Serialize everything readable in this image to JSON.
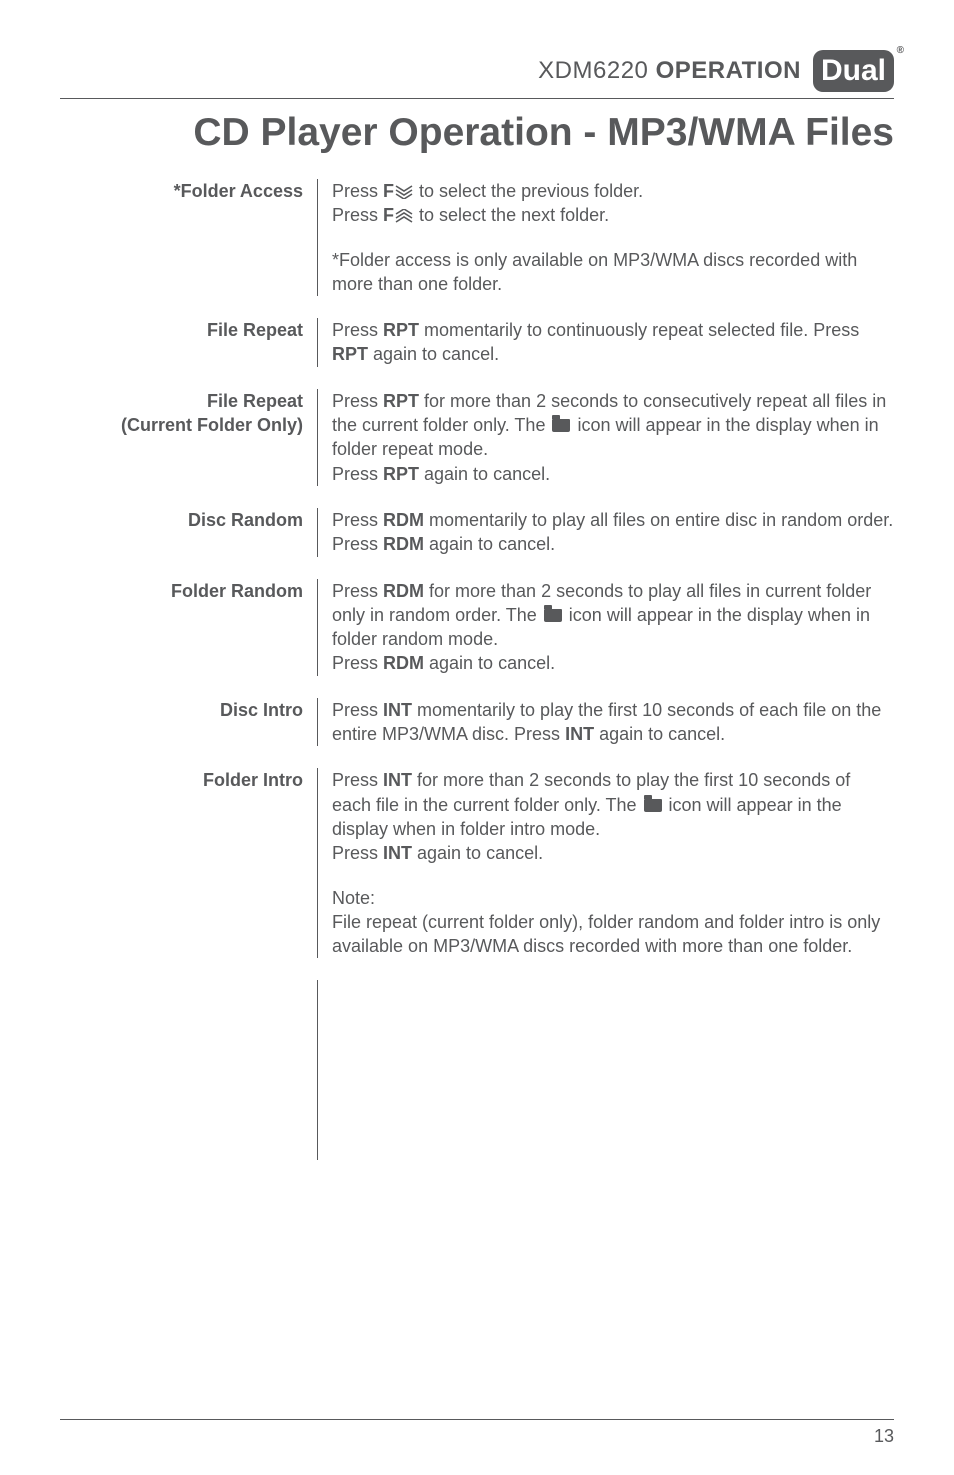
{
  "header": {
    "model": "XDM6220",
    "operation": "OPERATION",
    "logo": "Dual"
  },
  "title": "CD Player Operation - MP3/WMA Files",
  "sections": [
    {
      "label": "*Folder Access",
      "paras": [
        "Press <span class='b'>F</span><svg class='chev' width='20' height='14'><path d='M2 1 L10 6 L18 1 M2 5 L10 10 L18 5 M2 9 L10 14 L18 9' stroke='#58595b' stroke-width='1.6' fill='none'/></svg> to select the previous folder.<br>Press <span class='b'>F</span><svg class='chev' width='20' height='14'><path d='M2 13 L10 8 L18 13 M2 9 L10 4 L18 9 M2 5 L10 0 L18 5' stroke='#58595b' stroke-width='1.6' fill='none'/></svg> to select the next folder.",
        "*Folder access is only available on MP3/WMA discs recorded with more than one folder."
      ]
    },
    {
      "label": "File Repeat",
      "paras": [
        "Press <span class='b'>RPT</span> momentarily to continuously repeat selected file. Press <span class='b'>RPT</span> again to cancel."
      ]
    },
    {
      "label": "File Repeat<br>(Current Folder Only)",
      "paras": [
        "Press <span class='b'>RPT</span> for more than 2 seconds to consecutively repeat all files in the current folder only. The <span class='folder-icon'></span> icon will appear in the display when in folder repeat mode.<br>Press <span class='b'>RPT</span> again to cancel."
      ]
    },
    {
      "label": "Disc Random",
      "paras": [
        "Press <span class='b'>RDM</span> momentarily to play all files on entire disc in random order. Press <span class='b'>RDM</span> again to cancel."
      ]
    },
    {
      "label": "Folder Random",
      "paras": [
        "Press <span class='b'>RDM</span> for more than 2 seconds to play all files in current folder only in random order. The <span class='folder-icon'></span> icon will appear in the display when in folder random mode.<br>Press <span class='b'>RDM</span> again to cancel."
      ]
    },
    {
      "label": "Disc Intro",
      "paras": [
        "Press <span class='b'>INT</span> momentarily to play the first 10 seconds of each file on the entire MP3/WMA disc. Press <span class='b'>INT</span> again to cancel."
      ]
    },
    {
      "label": "Folder Intro",
      "paras": [
        "Press <span class='b'>INT</span> for more than 2 seconds to play the first 10 seconds of each file in the current folder only. The <span class='folder-icon'></span> icon will appear in the display when in folder intro mode.<br>Press <span class='b'>INT</span> again to cancel.",
        "Note:<br>File repeat (current folder only), folder random and folder intro is only available on MP3/WMA discs recorded with more than one folder."
      ]
    }
  ],
  "pageNumber": "13"
}
